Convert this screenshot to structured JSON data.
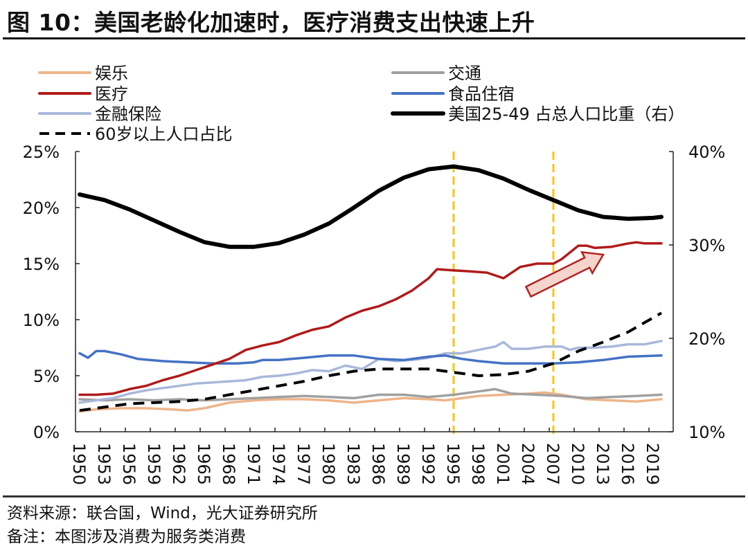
{
  "title": "图 10：美国老龄化加速时，医疗消费支出快速上升",
  "source": "资料来源：联合国，Wind，光大证券研究所",
  "remark": "备注：本图涉及消费为服务类消费",
  "chart_data": {
    "type": "line",
    "title": "图 10：美国老龄化加速时，医疗消费支出快速上升",
    "xlabel": "",
    "ylabel_left": "",
    "ylabel_right": "",
    "x_tick_labels": [
      "1950",
      "1953",
      "1956",
      "1959",
      "1962",
      "1965",
      "1968",
      "1971",
      "1974",
      "1977",
      "1980",
      "1983",
      "1986",
      "1989",
      "1992",
      "1995",
      "1998",
      "2001",
      "2004",
      "2007",
      "2010",
      "2013",
      "2016",
      "2019"
    ],
    "x_range": [
      1950,
      2021
    ],
    "y_left": {
      "range": [
        0,
        25
      ],
      "ticks": [
        0,
        5,
        10,
        15,
        20,
        25
      ],
      "tick_labels": [
        "0%",
        "5%",
        "10%",
        "15%",
        "20%",
        "25%"
      ],
      "unit": "%"
    },
    "y_right": {
      "range": [
        10,
        40
      ],
      "ticks": [
        10,
        20,
        30,
        40
      ],
      "tick_labels": [
        "10%",
        "20%",
        "30%",
        "40%"
      ],
      "unit": "%"
    },
    "grid": false,
    "legend": {
      "placement": "top",
      "columns": 2
    },
    "reference_lines": [
      {
        "x": 1995,
        "style": "dashed",
        "color": "#F5C518"
      },
      {
        "x": 2007,
        "style": "dashed",
        "color": "#F5C518"
      }
    ],
    "annotations": [
      {
        "type": "arrow",
        "from": [
          2004,
          12.5
        ],
        "to": [
          2013,
          15.8
        ],
        "color": "#B22222",
        "fill": "#F6D5CC"
      }
    ],
    "series": [
      {
        "name": "娱乐",
        "axis": "left",
        "color": "#EDB48A",
        "style": "solid",
        "x": [
          1950,
          1952,
          1955,
          1958,
          1961,
          1963,
          1965,
          1968,
          1971,
          1974,
          1977,
          1980,
          1983,
          1986,
          1989,
          1992,
          1994,
          1996,
          1998,
          2001,
          2004,
          2006,
          2008,
          2011,
          2014,
          2017,
          2020
        ],
        "values": [
          1.8,
          2.0,
          2.1,
          2.1,
          2.0,
          1.9,
          2.1,
          2.6,
          2.8,
          2.9,
          2.9,
          2.8,
          2.6,
          2.8,
          3.0,
          2.9,
          2.8,
          3.0,
          3.2,
          3.3,
          3.4,
          3.5,
          3.3,
          2.9,
          2.8,
          2.7,
          2.9
        ]
      },
      {
        "name": "医疗",
        "axis": "left",
        "color": "#B01A1A",
        "style": "solid",
        "x": [
          1950,
          1952,
          1954,
          1956,
          1958,
          1960,
          1962,
          1964,
          1966,
          1968,
          1970,
          1972,
          1974,
          1976,
          1978,
          1980,
          1982,
          1984,
          1986,
          1988,
          1990,
          1992,
          1993,
          1995,
          1997,
          1999,
          2001,
          2003,
          2005,
          2007,
          2008,
          2009,
          2010,
          2011,
          2012,
          2014,
          2016,
          2017,
          2018,
          2020
        ],
        "values": [
          3.3,
          3.3,
          3.4,
          3.8,
          4.1,
          4.6,
          5.0,
          5.5,
          6.0,
          6.5,
          7.3,
          7.7,
          8.0,
          8.6,
          9.1,
          9.4,
          10.2,
          10.8,
          11.2,
          11.8,
          12.6,
          13.7,
          14.5,
          14.4,
          14.3,
          14.2,
          13.7,
          14.7,
          15.0,
          15.0,
          15.4,
          16.0,
          16.6,
          16.6,
          16.4,
          16.5,
          16.8,
          16.9,
          16.8,
          16.8
        ]
      },
      {
        "name": "金融保险",
        "axis": "left",
        "color": "#A9B8D9",
        "style": "solid",
        "x": [
          1950,
          1952,
          1954,
          1956,
          1958,
          1960,
          1962,
          1964,
          1966,
          1968,
          1970,
          1972,
          1974,
          1976,
          1978,
          1980,
          1982,
          1984,
          1986,
          1988,
          1990,
          1992,
          1994,
          1996,
          1998,
          2000,
          2001,
          2002,
          2004,
          2006,
          2008,
          2009,
          2010,
          2012,
          2014,
          2016,
          2018,
          2020
        ],
        "values": [
          2.6,
          2.8,
          3.0,
          3.4,
          3.7,
          3.9,
          4.1,
          4.3,
          4.4,
          4.5,
          4.6,
          4.9,
          5.0,
          5.2,
          5.5,
          5.4,
          5.9,
          5.6,
          6.5,
          6.3,
          6.4,
          6.6,
          7.0,
          7.0,
          7.3,
          7.6,
          8.0,
          7.4,
          7.4,
          7.6,
          7.6,
          7.3,
          7.5,
          7.5,
          7.6,
          7.8,
          7.8,
          8.1
        ]
      },
      {
        "name": "交通",
        "axis": "left",
        "color": "#A0A0A0",
        "style": "solid",
        "x": [
          1950,
          1953,
          1956,
          1959,
          1962,
          1965,
          1968,
          1971,
          1974,
          1977,
          1980,
          1983,
          1986,
          1989,
          1992,
          1995,
          1998,
          2000,
          2002,
          2005,
          2008,
          2011,
          2014,
          2017,
          2020
        ],
        "values": [
          2.9,
          2.8,
          2.9,
          2.8,
          2.9,
          2.8,
          2.9,
          3.0,
          3.1,
          3.2,
          3.1,
          3.0,
          3.3,
          3.3,
          3.1,
          3.3,
          3.6,
          3.8,
          3.4,
          3.3,
          3.2,
          3.0,
          3.1,
          3.2,
          3.3
        ]
      },
      {
        "name": "食品住宿",
        "axis": "left",
        "color": "#4472C4",
        "style": "solid",
        "x": [
          1950,
          1951,
          1952,
          1953,
          1955,
          1957,
          1960,
          1963,
          1966,
          1969,
          1971,
          1972,
          1974,
          1977,
          1980,
          1983,
          1986,
          1989,
          1992,
          1994,
          1996,
          1998,
          2001,
          2004,
          2007,
          2010,
          2013,
          2016,
          2020
        ],
        "values": [
          7.0,
          6.6,
          7.2,
          7.2,
          6.9,
          6.5,
          6.3,
          6.2,
          6.1,
          6.1,
          6.2,
          6.4,
          6.4,
          6.6,
          6.8,
          6.8,
          6.5,
          6.4,
          6.7,
          6.8,
          6.5,
          6.3,
          6.1,
          6.1,
          6.1,
          6.2,
          6.4,
          6.7,
          6.8
        ]
      },
      {
        "name": "美国25-49 占总人口比重（右）",
        "axis": "right",
        "color": "#000000",
        "style": "solid",
        "x": [
          1950,
          1953,
          1956,
          1959,
          1962,
          1965,
          1968,
          1971,
          1974,
          1977,
          1980,
          1983,
          1986,
          1989,
          1992,
          1995,
          1998,
          2001,
          2004,
          2007,
          2010,
          2013,
          2016,
          2019,
          2020
        ],
        "values": [
          35.4,
          34.8,
          33.8,
          32.6,
          31.4,
          30.3,
          29.8,
          29.8,
          30.2,
          31.1,
          32.3,
          34.0,
          35.8,
          37.2,
          38.1,
          38.4,
          38.0,
          37.1,
          35.9,
          34.8,
          33.7,
          33.0,
          32.8,
          32.9,
          33.0
        ]
      },
      {
        "name": "60岁以上人口占比",
        "axis": "left",
        "color": "#000000",
        "style": "dashed",
        "x": [
          1950,
          1953,
          1956,
          1959,
          1962,
          1965,
          1968,
          1971,
          1974,
          1977,
          1980,
          1983,
          1986,
          1989,
          1992,
          1995,
          1998,
          2001,
          2004,
          2007,
          2010,
          2013,
          2016,
          2020
        ],
        "values": [
          1.9,
          2.2,
          2.5,
          2.6,
          2.7,
          2.9,
          3.3,
          3.7,
          4.1,
          4.5,
          5.0,
          5.4,
          5.6,
          5.6,
          5.6,
          5.3,
          5.0,
          5.1,
          5.4,
          6.1,
          7.2,
          8.0,
          8.9,
          10.6
        ]
      }
    ]
  }
}
